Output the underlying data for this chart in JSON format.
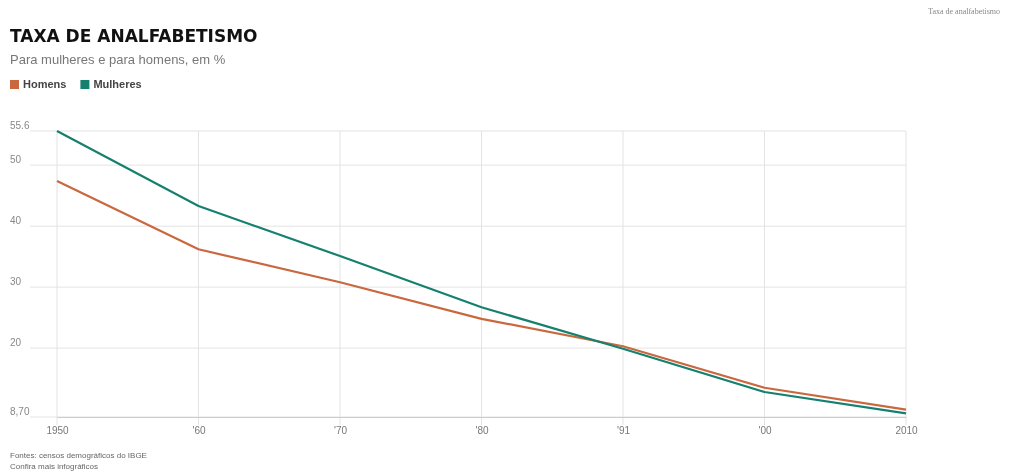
{
  "chart_data": {
    "type": "line",
    "title": "TAXA DE ANALFABETISMO",
    "subtitle": "Para mulheres e para homens, em %",
    "categories": [
      "1950",
      "'60",
      "'70",
      "'80",
      "'91",
      "'00",
      "2010"
    ],
    "series": [
      {
        "name": "Homens",
        "color": "#c9683f",
        "values": [
          47.4,
          36.2,
          30.8,
          24.8,
          20.3,
          13.5,
          9.9
        ]
      },
      {
        "name": "Mulheres",
        "color": "#16806f",
        "values": [
          55.6,
          43.3,
          35.1,
          26.7,
          19.9,
          12.8,
          9.3
        ]
      }
    ],
    "ylim": [
      8.7,
      55.6
    ],
    "yticks": [
      {
        "value": 8.7,
        "label": "8,70"
      },
      20,
      30,
      40,
      50,
      {
        "value": 55.6,
        "label": "55.6"
      }
    ],
    "grid": true,
    "legend": "top left",
    "marker": "none",
    "line_style": "solid",
    "annotations": [
      "Fontes: censos demográficos do IBGE",
      "Confira mais infográficos",
      "Taxa de analfabetismo"
    ]
  }
}
